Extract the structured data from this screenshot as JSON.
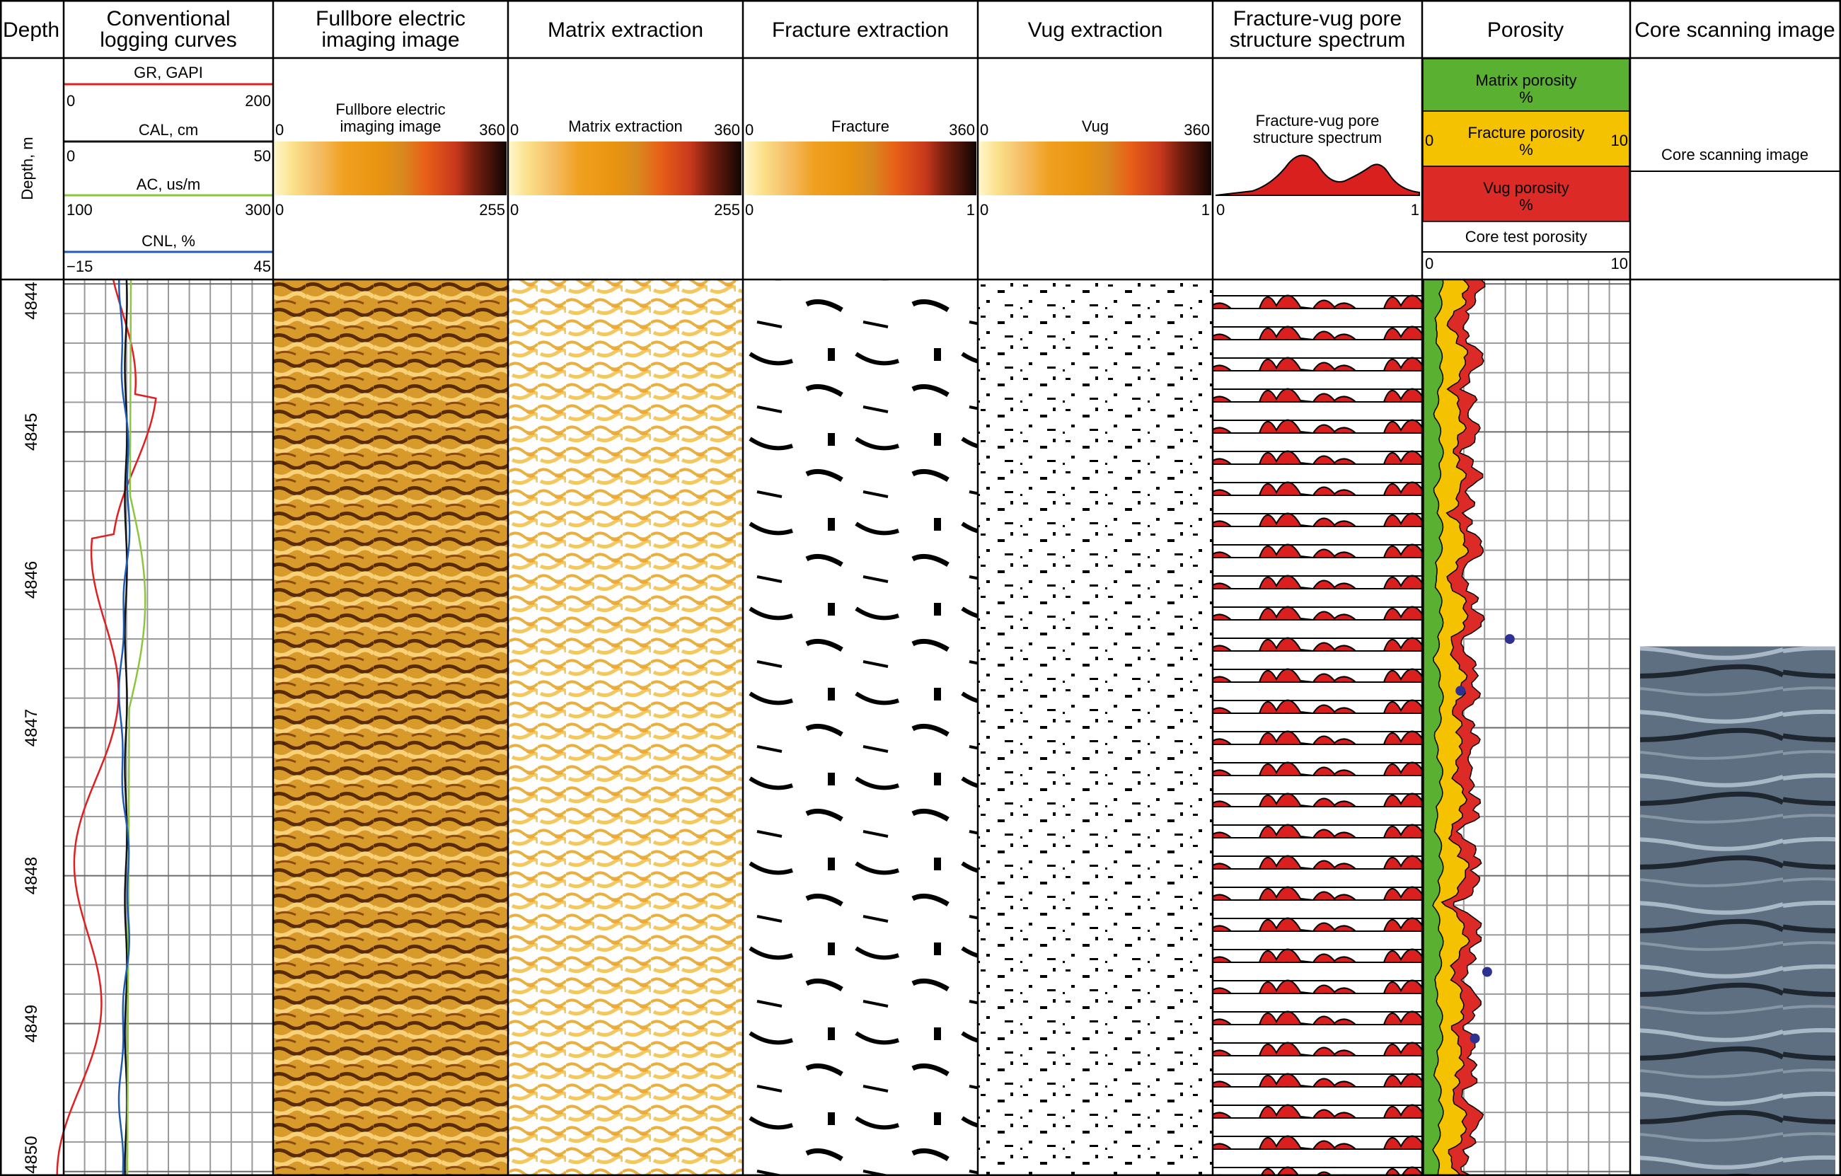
{
  "tracks": {
    "depth": {
      "title": "Depth",
      "axis_label": "Depth, m"
    },
    "conventional": {
      "title_lines": [
        "Conventional",
        "logging curves"
      ],
      "curves": [
        {
          "name": "GR, GAPI",
          "min": "0",
          "max": "200",
          "color": "#e02020"
        },
        {
          "name": "CAL, cm",
          "min": "0",
          "max": "50",
          "color": "#111111"
        },
        {
          "name": "AC, us/m",
          "min": "100",
          "max": "300",
          "color": "#8cc63f"
        },
        {
          "name": "CNL, %",
          "min": "−15",
          "max": "45",
          "color": "#1f5bb5"
        }
      ]
    },
    "fullbore": {
      "title_lines": [
        "Fullbore electric",
        "imaging image"
      ],
      "legend_lines": [
        "Fullbore electric",
        "imaging image"
      ],
      "scale_top": [
        "0",
        "360"
      ],
      "scale_bottom": [
        "0",
        "255"
      ]
    },
    "matrix": {
      "title": "Matrix extraction",
      "legend": "Matrix extraction",
      "scale_top": [
        "0",
        "360"
      ],
      "scale_bottom": [
        "0",
        "255"
      ]
    },
    "fracture": {
      "title": "Fracture extraction",
      "legend": "Fracture",
      "scale_top": [
        "0",
        "360"
      ],
      "scale_bottom": [
        "0",
        "1"
      ]
    },
    "vug": {
      "title": "Vug extraction",
      "legend": "Vug",
      "scale_top": [
        "0",
        "360"
      ],
      "scale_bottom": [
        "0",
        "1"
      ]
    },
    "spectrum": {
      "title_lines": [
        "Fracture-vug pore",
        "structure spectrum"
      ],
      "legend_lines": [
        "Fracture-vug pore",
        "structure spectrum"
      ],
      "scale": [
        "0",
        "1"
      ]
    },
    "porosity": {
      "title": "Porosity",
      "matrix_lines": [
        "Matrix porosity",
        "%"
      ],
      "fracture_lines": [
        "Fracture porosity",
        "%"
      ],
      "fracture_scale": [
        "0",
        "10"
      ],
      "vug_lines": [
        "Vug porosity",
        "%"
      ],
      "core_test": "Core test porosity",
      "core_scale": [
        "0",
        "10"
      ],
      "colors": {
        "matrix": "#5ab031",
        "fracture": "#f5c200",
        "vug": "#dc2a26",
        "core_dot": "#2e3192"
      }
    },
    "core": {
      "title": "Core scanning image",
      "legend": "Core scanning image"
    }
  },
  "depth_ticks": [
    "4844",
    "4845",
    "4846",
    "4847",
    "4848",
    "4849",
    "4850"
  ],
  "chart_data": {
    "type": "well-log",
    "depth_range_m": [
      4843.97,
      4850.03
    ],
    "core_test_porosity": [
      {
        "depth": 4846.4,
        "value": 4.2
      },
      {
        "depth": 4846.75,
        "value": 1.8
      },
      {
        "depth": 4848.65,
        "value": 3.1
      },
      {
        "depth": 4849.1,
        "value": 2.5
      }
    ],
    "core_image_depth_range": [
      4846.45,
      4850.03
    ]
  }
}
